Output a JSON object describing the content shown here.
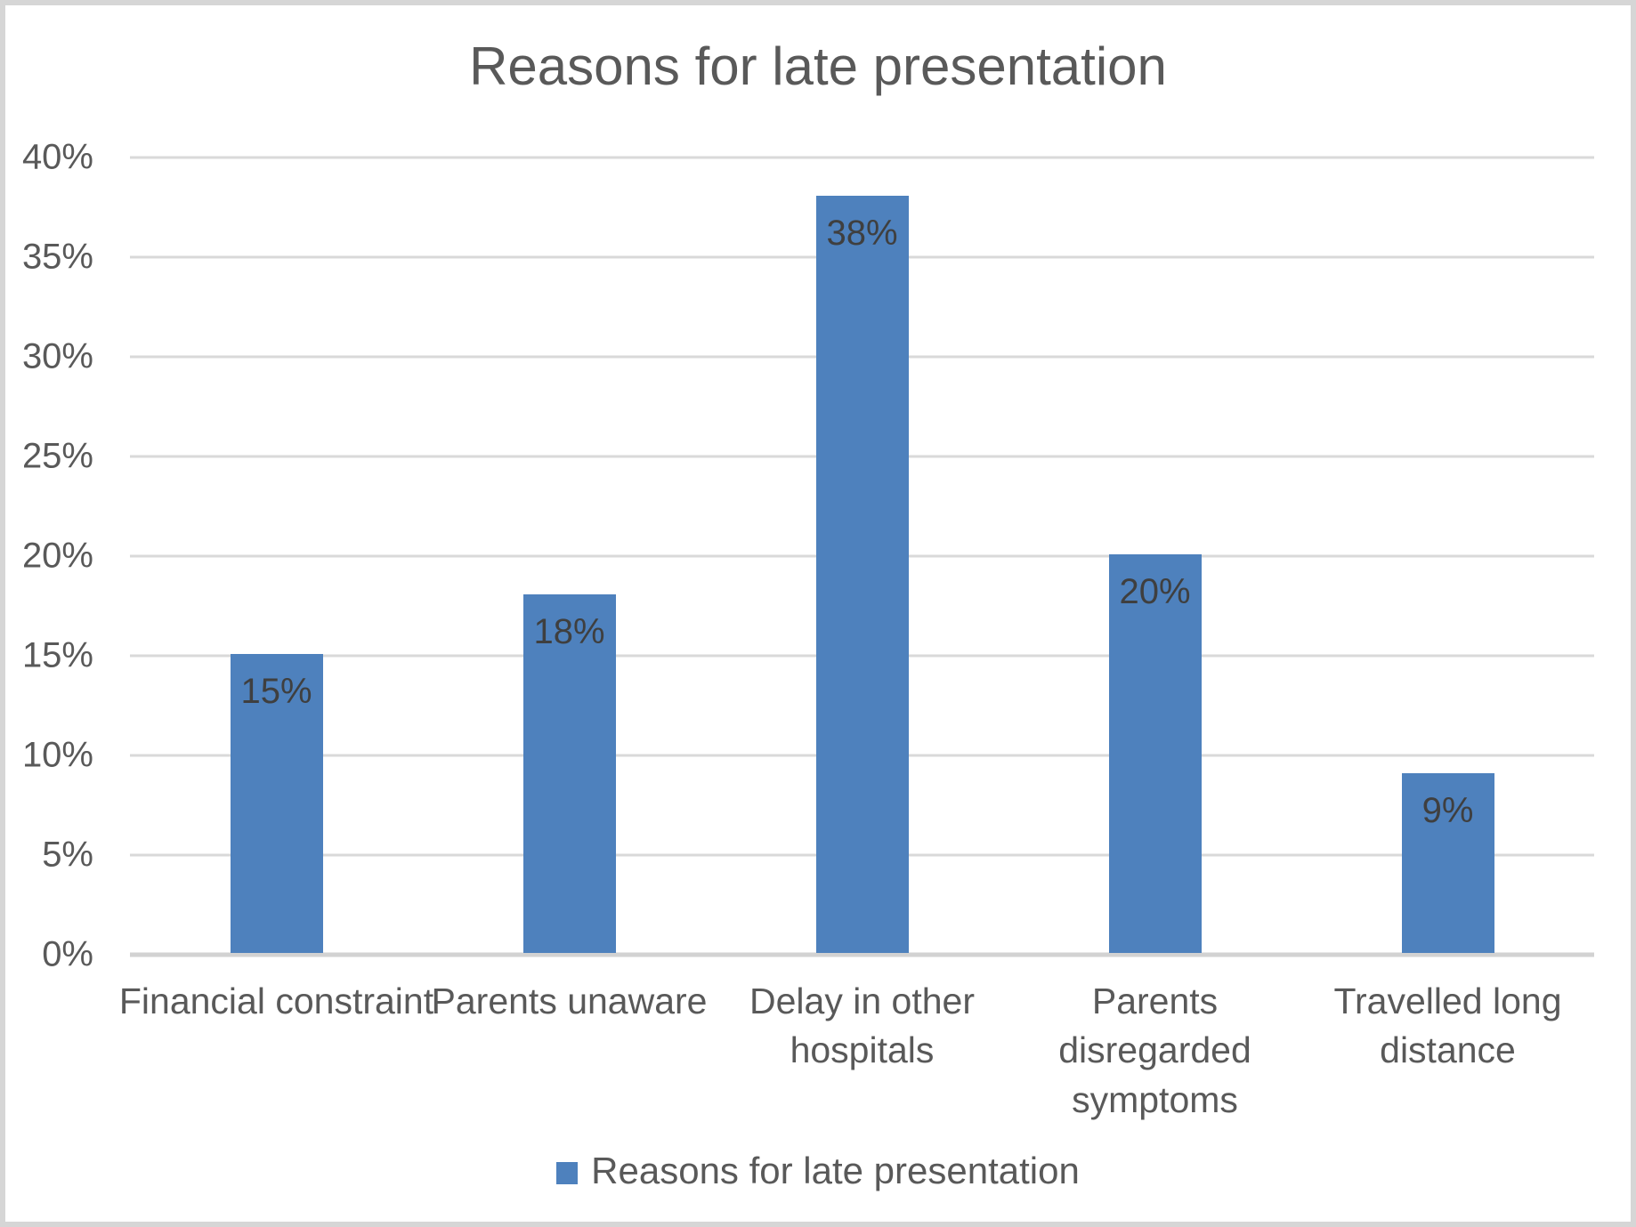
{
  "chart_data": {
    "type": "bar",
    "title": "Reasons for late presentation",
    "categories": [
      "Financial constraint",
      "Parents unaware",
      "Delay in other hospitals",
      "Parents disregarded symptoms",
      "Travelled long distance"
    ],
    "values": [
      15,
      18,
      38,
      20,
      9
    ],
    "data_labels": [
      "15%",
      "18%",
      "38%",
      "20%",
      "9%"
    ],
    "category_label_lines": [
      [
        "Financial constraint"
      ],
      [
        "Parents unaware"
      ],
      [
        "Delay in other",
        "hospitals"
      ],
      [
        "Parents",
        "disregarded",
        "symptoms"
      ],
      [
        "Travelled long",
        "distance"
      ]
    ],
    "series_name": "Reasons for late presentation",
    "legend": [
      "Reasons for late presentation"
    ],
    "legend_position": "bottom",
    "xlabel": "",
    "ylabel": "",
    "y_axis": {
      "min": 0,
      "max": 40,
      "step": 5,
      "tick_labels": [
        "0%",
        "5%",
        "10%",
        "15%",
        "20%",
        "25%",
        "30%",
        "35%",
        "40%"
      ],
      "unit": "%"
    },
    "ylim": [
      0,
      40
    ],
    "grid": true,
    "colors": {
      "bar": "#4E81BD",
      "grid": "#D9D9D9",
      "axis_line": "#D2D2D2",
      "text": "#595959",
      "data_label": "#3F3F3F",
      "frame_border": "#D6D6D6"
    }
  }
}
